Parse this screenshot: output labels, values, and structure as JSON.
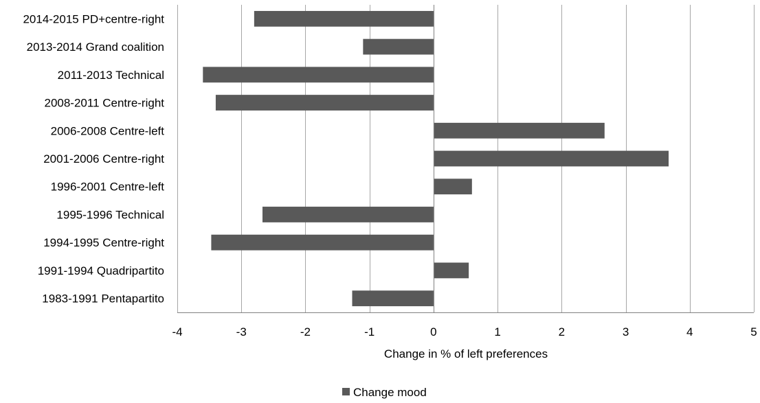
{
  "chart_data": {
    "type": "bar",
    "orientation": "horizontal",
    "categories": [
      "2014-2015 PD+centre-right",
      "2013-2014 Grand coalition",
      "2011-2013 Technical",
      "2008-2011 Centre-right",
      "2006-2008 Centre-left",
      "2001-2006 Centre-right",
      "1996-2001 Centre-left",
      "1995-1996 Technical",
      "1994-1995 Centre-right",
      "1991-1994 Quadripartito",
      "1983-1991 Pentapartito"
    ],
    "series": [
      {
        "name": "Change mood",
        "values": [
          -2.8,
          -1.1,
          -3.6,
          -3.4,
          2.67,
          3.67,
          0.6,
          -2.67,
          -3.47,
          0.55,
          -1.27
        ]
      }
    ],
    "xlabel": "Change in % of left preferences",
    "ylabel": "",
    "xlim": [
      -4,
      5
    ],
    "xticks": [
      "-4",
      "-3",
      "-2",
      "-1",
      "0",
      "1",
      "2",
      "3",
      "4",
      "5"
    ],
    "grid": "vertical",
    "legend_position": "bottom",
    "colors": {
      "bar": "#595959",
      "grid": "#a6a6a6",
      "axis": "#808080"
    }
  }
}
